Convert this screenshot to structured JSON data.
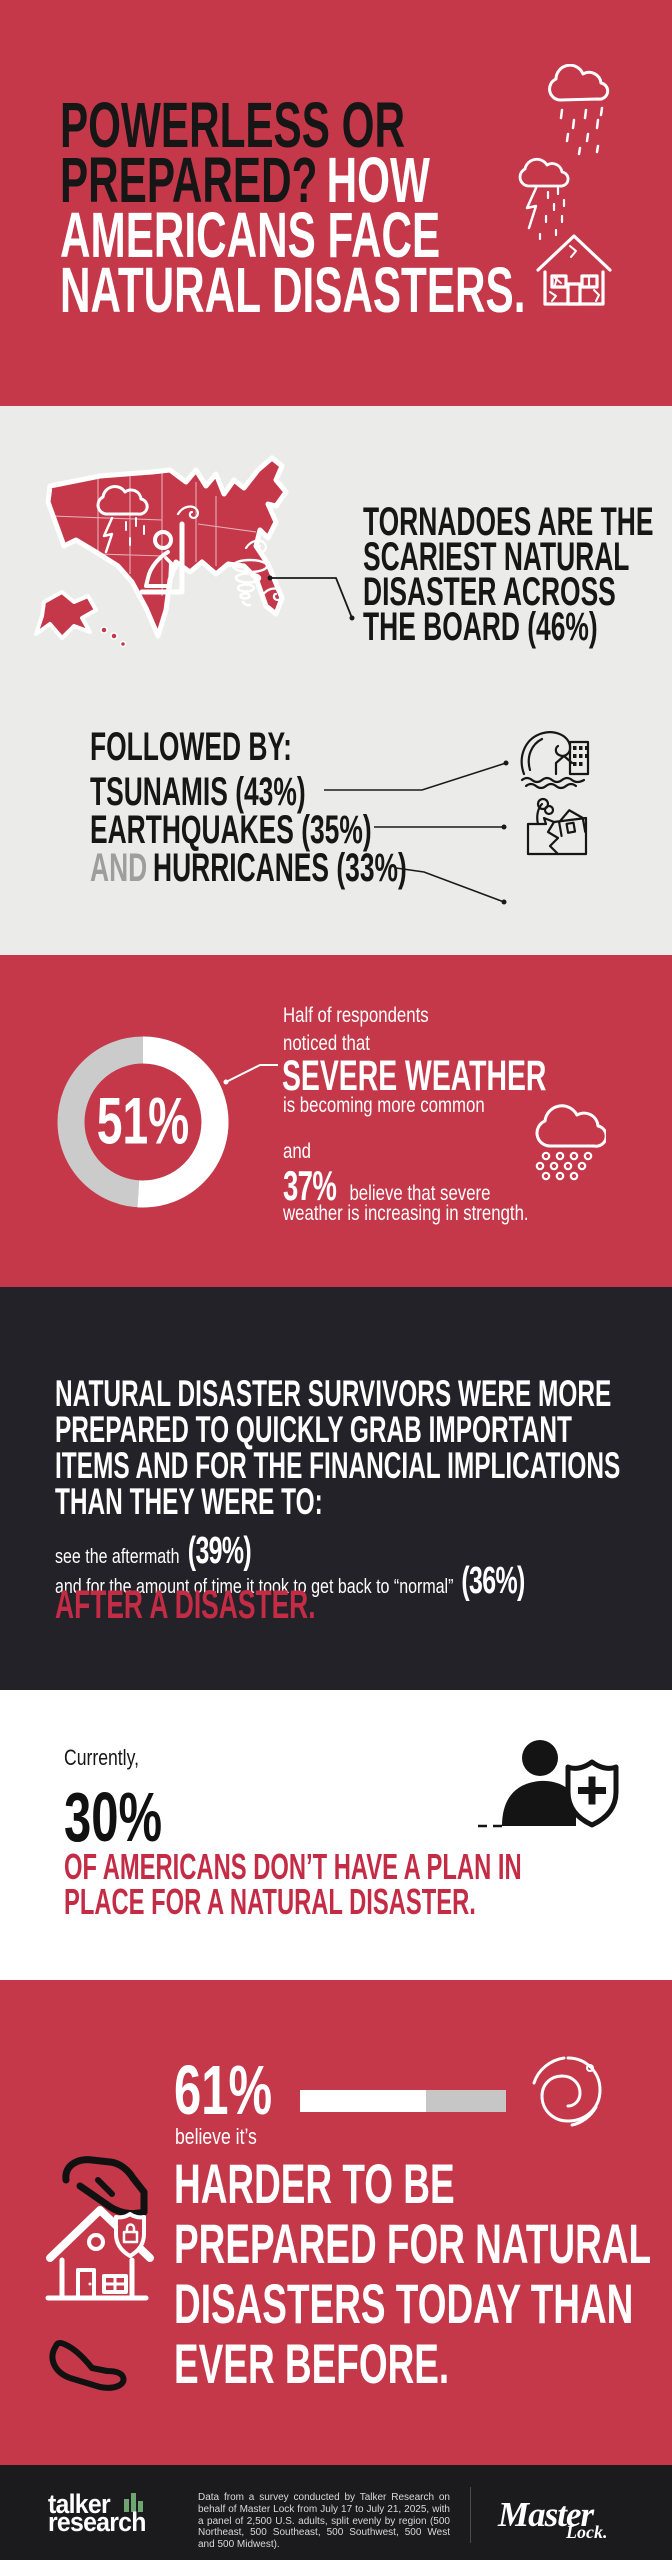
{
  "colors": {
    "red_bg": "#C4384A",
    "accent_red": "#C42B45",
    "light_gray_bg": "#EBEBE9",
    "dark_bg": "#232228",
    "footer_bg": "#1B1B1D",
    "gray_and": "#9E9E9E",
    "donut_gray": "#CBCBCB",
    "bar_gray": "#C6C6C6",
    "logo_green": "#6FA570",
    "ink": "#161616",
    "white": "#FFFFFF"
  },
  "header": {
    "line1": "POWERLESS OR",
    "line2_black": "PREPARED?",
    "line2_white": "HOW",
    "line3": "AMERICANS FACE",
    "line4": "NATURAL DISASTERS."
  },
  "tornado": {
    "lines": [
      "TORNADOES ARE THE",
      "SCARIEST NATURAL",
      "DISASTER ACROSS",
      "THE BOARD (46%)"
    ]
  },
  "followed": {
    "title": "FOLLOWED BY:",
    "item1": "TSUNAMIS (43%)",
    "item2": "EARTHQUAKES (35%)",
    "item3_prefix": "AND",
    "item3_label": "HURRICANES (33%)"
  },
  "severe": {
    "pct": 51,
    "pct_label": "51%",
    "l1": "Half of respondents",
    "l2": "noticed that",
    "em": "SEVERE WEATHER",
    "l3": "is becoming more common",
    "conj": "and",
    "stat": "37%",
    "s1": "believe that severe",
    "s2": "weather is increasing in strength."
  },
  "survivors": {
    "lines": [
      "NATURAL DISASTER SURVIVORS WERE MORE",
      "PREPARED TO QUICKLY GRAB IMPORTANT",
      "ITEMS AND FOR THE FINANCIAL IMPLICATIONS",
      "THAN THEY WERE TO:"
    ],
    "r1_text": "see the aftermath",
    "r1_stat": "(39%)",
    "r2_text": "and for the amount of time it took to get back to “normal”",
    "r2_stat": "(36%)",
    "accent": "AFTER A DISASTER."
  },
  "plan": {
    "intro": "Currently,",
    "stat": "30%",
    "l1": "OF AMERICANS DON’T HAVE A PLAN IN",
    "l2": "PLACE FOR A NATURAL DISASTER."
  },
  "harder": {
    "pct": 61,
    "stat": "61%",
    "sub": "believe it’s",
    "lines": [
      "HARDER TO BE",
      "PREPARED FOR NATURAL",
      "DISASTERS TODAY THAN",
      "EVER BEFORE."
    ]
  },
  "footer": {
    "brand_talker_1": "talker",
    "brand_talker_2": "research",
    "disclaimer": "Data from a survey conducted by Talker Research on behalf of Master Lock from July 17 to July 21, 2025, with a panel of 2,500 U.S. adults, split evenly by region (500 Northeast, 500 Southeast, 500 Southwest, 500 West and 500 Midwest).",
    "brand_master_1": "Master",
    "brand_master_2": "Lock."
  },
  "icons": [
    "rain-cloud-icon",
    "storm-cloud-lightning-icon",
    "damaged-house-icon",
    "us-map",
    "map-storm-cloud-icon",
    "kneeling-person-icon",
    "tornado-icon",
    "wind-swirl-icon",
    "tsunami-icon",
    "earthquake-icon",
    "hurricane-trees-icon",
    "donut-chart",
    "severe-rain-cloud-icon",
    "person-shield-icon",
    "hurricane-spiral-icon",
    "giving-hand-icon",
    "protected-house-icon",
    "receiving-hand-icon",
    "talker-research-logo",
    "master-lock-logo"
  ],
  "chart_data": [
    {
      "type": "bar",
      "title": "Scariest natural disasters across the board",
      "categories": [
        "Tornadoes",
        "Tsunamis",
        "Earthquakes",
        "Hurricanes"
      ],
      "values": [
        46,
        43,
        35,
        33
      ],
      "unit": "percent"
    },
    {
      "type": "pie",
      "title": "Respondents who noticed severe weather becoming more common",
      "labels": [
        "Noticed severe weather more common",
        "Other"
      ],
      "values": [
        51,
        49
      ],
      "unit": "percent"
    },
    {
      "type": "bar",
      "title": "Severe weather and preparedness statistics",
      "categories": [
        "Believe severe weather is increasing in strength",
        "Survivors prepared to see the aftermath",
        "Survivors prepared for time to get back to normal",
        "Americans without a natural disaster plan",
        "Believe it is harder to be prepared today than ever before"
      ],
      "values": [
        37,
        39,
        36,
        30,
        61
      ],
      "unit": "percent"
    }
  ]
}
